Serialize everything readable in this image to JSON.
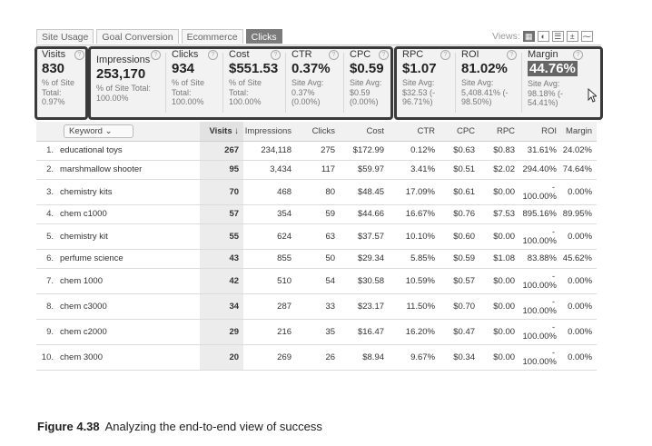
{
  "tabs": [
    "Site Usage",
    "Goal Conversion",
    "Ecommerce",
    "Clicks"
  ],
  "views_label": "Views:",
  "scorecard": [
    {
      "name": "Visits",
      "value": "830",
      "sub": [
        "% of Site",
        "Total:",
        "0.97%"
      ]
    },
    {
      "name": "Impressions",
      "value": "253,170",
      "sub": [
        "% of Site Total:",
        "100.00%"
      ]
    },
    {
      "name": "Clicks",
      "value": "934",
      "sub": [
        "% of Site",
        "Total:",
        "100.00%"
      ]
    },
    {
      "name": "Cost",
      "value": "$551.53",
      "sub": [
        "% of Site",
        "Total:",
        "100.00%"
      ]
    },
    {
      "name": "CTR",
      "value": "0.37%",
      "sub": [
        "Site Avg:",
        "0.37%",
        "(0.00%)"
      ]
    },
    {
      "name": "CPC",
      "value": "$0.59",
      "sub": [
        "Site Avg:",
        "$0.59",
        "(0.00%)"
      ]
    },
    {
      "name": "RPC",
      "value": "$1.07",
      "sub": [
        "Site Avg:",
        "$32.53 (-",
        "96.71%)"
      ]
    },
    {
      "name": "ROI",
      "value": "81.02%",
      "sub": [
        "Site Avg:",
        "5,408.41% (-",
        "98.50%)"
      ]
    },
    {
      "name": "Margin",
      "value": "44.76%",
      "sub": [
        "Site Avg:",
        "98.18% (-",
        "54.41%)"
      ]
    }
  ],
  "table": {
    "keyword_label": "Keyword",
    "headers": [
      "Visits ↓",
      "Impressions",
      "Clicks",
      "Cost",
      "CTR",
      "CPC",
      "RPC",
      "ROI",
      "Margin"
    ],
    "rows": [
      {
        "i": "1.",
        "kw": "educational toys",
        "visits": "267",
        "impr": "234,118",
        "clicks": "275",
        "cost": "$172.99",
        "ctr": "0.12%",
        "cpc": "$0.63",
        "rpc": "$0.83",
        "roi": "31.61%",
        "margin": "24.02%"
      },
      {
        "i": "2.",
        "kw": "marshmallow shooter",
        "visits": "95",
        "impr": "3,434",
        "clicks": "117",
        "cost": "$59.97",
        "ctr": "3.41%",
        "cpc": "$0.51",
        "rpc": "$2.02",
        "roi": "294.40%",
        "margin": "74.64%"
      },
      {
        "i": "3.",
        "kw": "chemistry kits",
        "visits": "70",
        "impr": "468",
        "clicks": "80",
        "cost": "$48.45",
        "ctr": "17.09%",
        "cpc": "$0.61",
        "rpc": "$0.00",
        "roi": "100.00%",
        "margin": "0.00%",
        "neg": "-"
      },
      {
        "i": "4.",
        "kw": "chem c1000",
        "visits": "57",
        "impr": "354",
        "clicks": "59",
        "cost": "$44.66",
        "ctr": "16.67%",
        "cpc": "$0.76",
        "rpc": "$7.53",
        "roi": "895.16%",
        "margin": "89.95%"
      },
      {
        "i": "5.",
        "kw": "chemistry kit",
        "visits": "55",
        "impr": "624",
        "clicks": "63",
        "cost": "$37.57",
        "ctr": "10.10%",
        "cpc": "$0.60",
        "rpc": "$0.00",
        "roi": "100.00%",
        "margin": "0.00%",
        "neg": "-"
      },
      {
        "i": "6.",
        "kw": "perfume science",
        "visits": "43",
        "impr": "855",
        "clicks": "50",
        "cost": "$29.34",
        "ctr": "5.85%",
        "cpc": "$0.59",
        "rpc": "$1.08",
        "roi": "83.88%",
        "margin": "45.62%"
      },
      {
        "i": "7.",
        "kw": "chem 1000",
        "visits": "42",
        "impr": "510",
        "clicks": "54",
        "cost": "$30.58",
        "ctr": "10.59%",
        "cpc": "$0.57",
        "rpc": "$0.00",
        "roi": "100.00%",
        "margin": "0.00%",
        "neg": "-"
      },
      {
        "i": "8.",
        "kw": "chem c3000",
        "visits": "34",
        "impr": "287",
        "clicks": "33",
        "cost": "$23.17",
        "ctr": "11.50%",
        "cpc": "$0.70",
        "rpc": "$0.00",
        "roi": "100.00%",
        "margin": "0.00%",
        "neg": "-"
      },
      {
        "i": "9.",
        "kw": "chem c2000",
        "visits": "29",
        "impr": "216",
        "clicks": "35",
        "cost": "$16.47",
        "ctr": "16.20%",
        "cpc": "$0.47",
        "rpc": "$0.00",
        "roi": "100.00%",
        "margin": "0.00%",
        "neg": "-"
      },
      {
        "i": "10.",
        "kw": "chem 3000",
        "visits": "20",
        "impr": "269",
        "clicks": "26",
        "cost": "$8.94",
        "ctr": "9.67%",
        "cpc": "$0.34",
        "rpc": "$0.00",
        "roi": "100.00%",
        "margin": "0.00%",
        "neg": "-"
      }
    ]
  },
  "caption": {
    "fig": "Figure 4.38",
    "text": "Analyzing the end-to-end view of success"
  }
}
